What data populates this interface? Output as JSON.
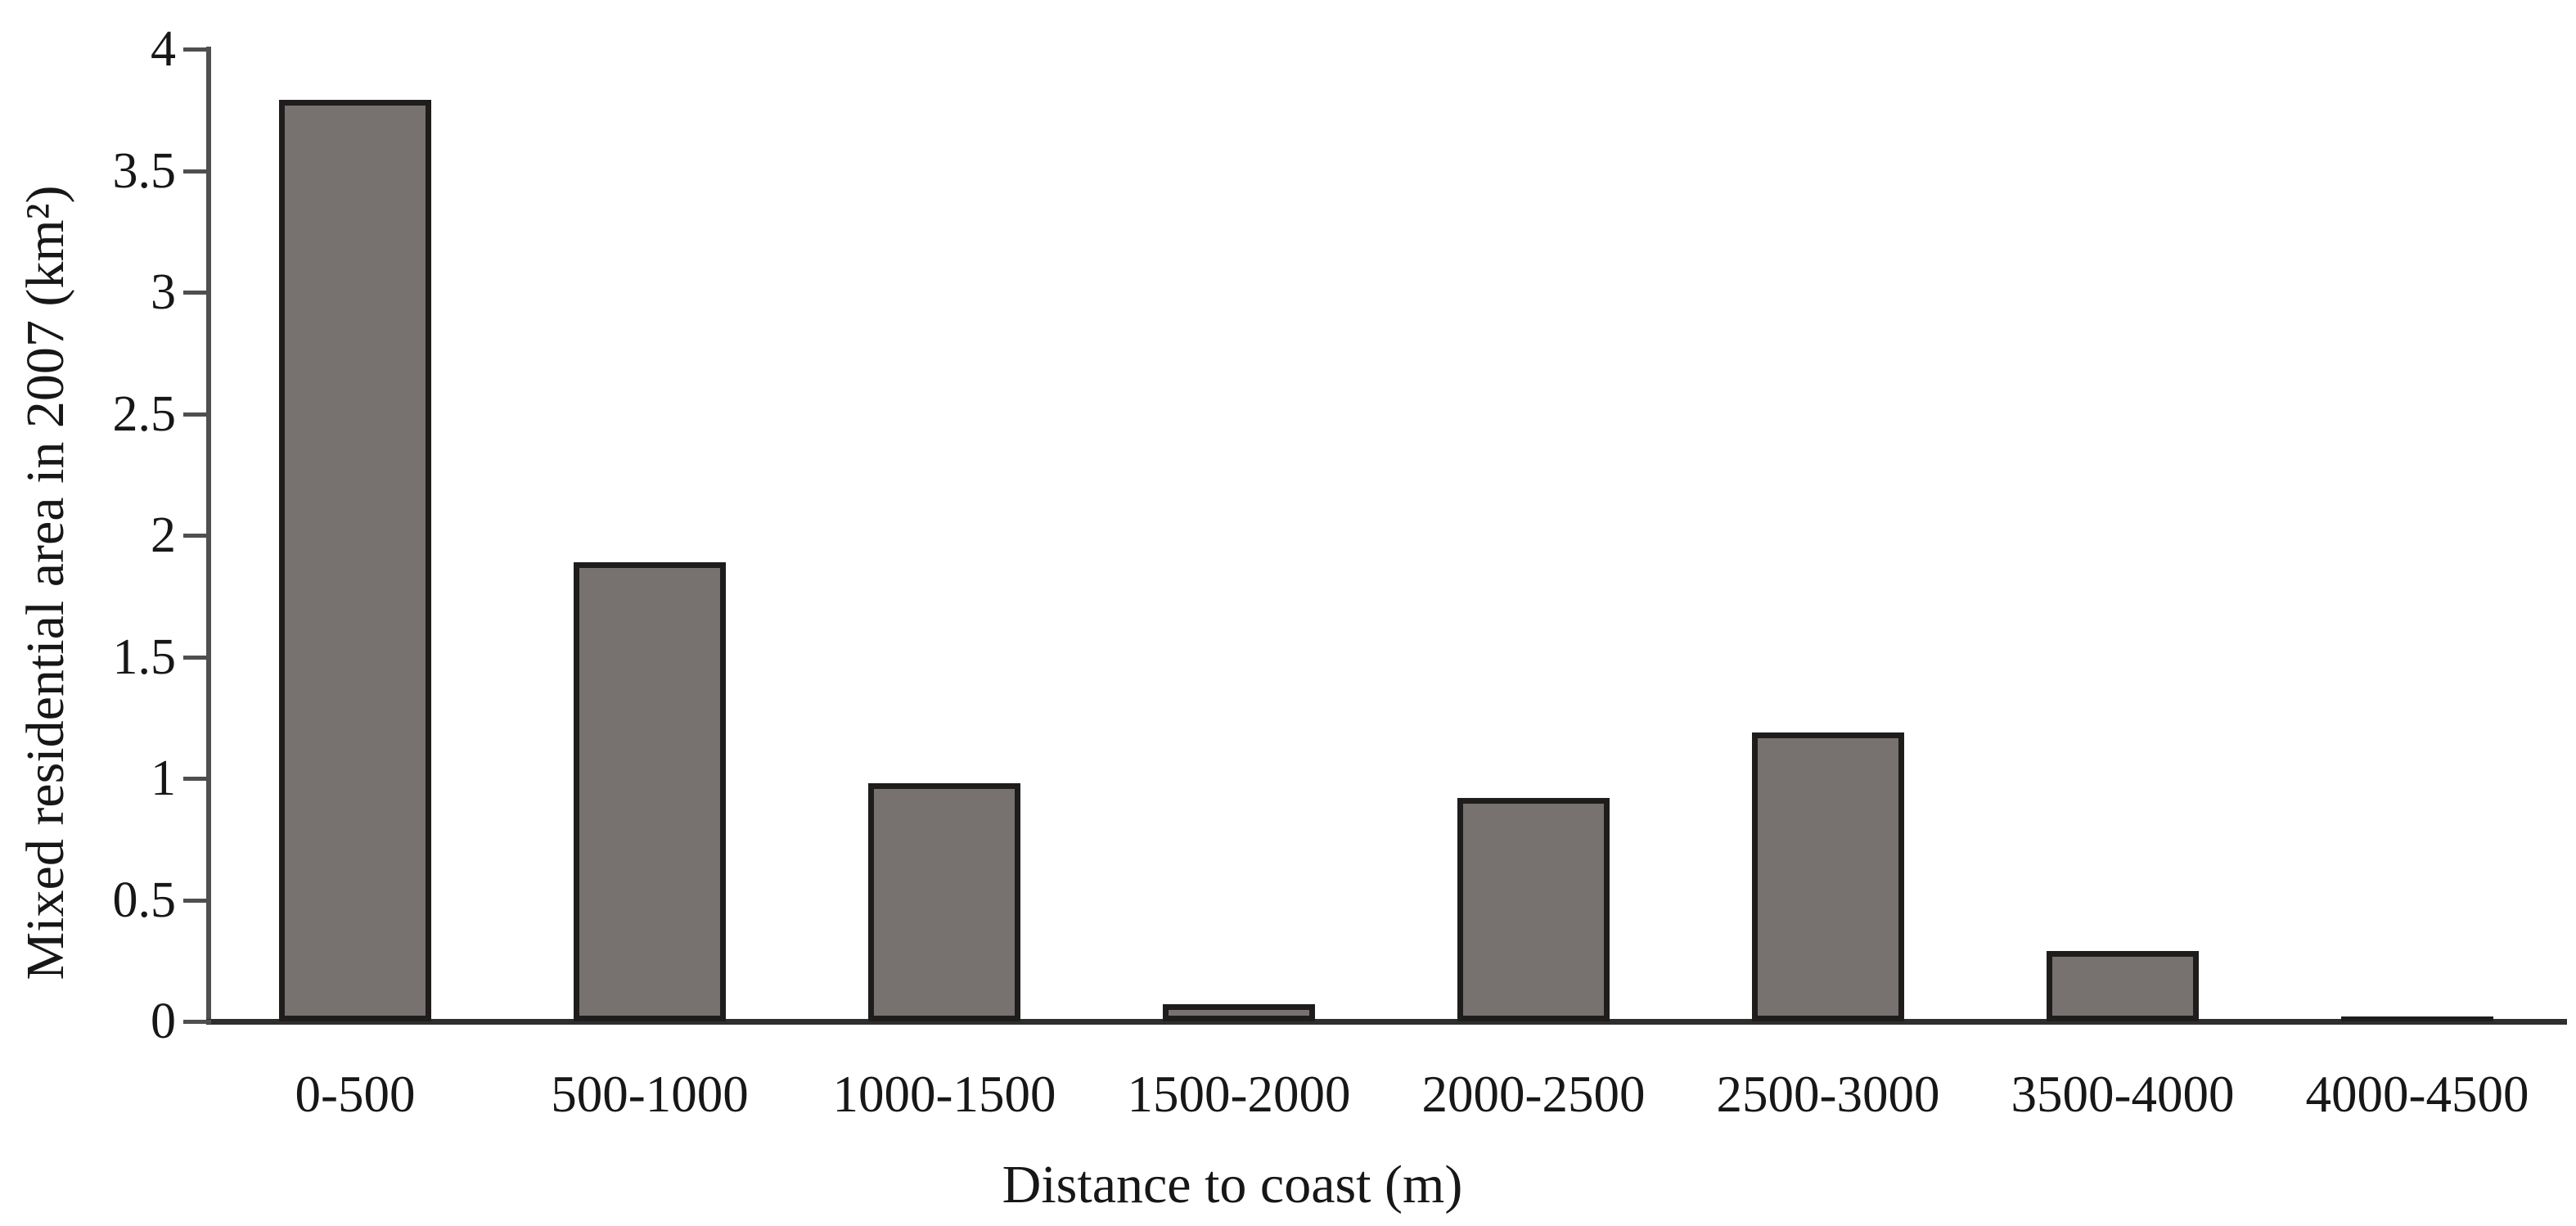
{
  "figure": {
    "background": "#ffffff",
    "text_color": "#171717"
  },
  "chart_data": {
    "type": "bar",
    "title": "",
    "categories": [
      "0-500",
      "500-1000",
      "1000-1500",
      "1500-2000",
      "2000-2500",
      "2500-3000",
      "3500-4000",
      "4000-4500"
    ],
    "values": [
      3.79,
      1.89,
      0.98,
      0.07,
      0.92,
      1.19,
      0.29,
      0.02
    ],
    "xlabel": "Distance to coast (m)",
    "ylabel": "Mixed residential area in 2007 (km²)",
    "ylim": [
      0,
      4
    ],
    "yticks": [
      0,
      0.5,
      1,
      1.5,
      2,
      2.5,
      3,
      3.5,
      4
    ],
    "ytick_labels": [
      "0",
      "0.5",
      "1",
      "1.5",
      "2",
      "2.5",
      "3",
      "3.5",
      "4"
    ],
    "grid": false,
    "legend": "none",
    "bar_fill": "#777170",
    "bar_border": "#1f1d1c",
    "axis_color": "#4f4f4f",
    "baseline_color": "#2e2e2e"
  }
}
